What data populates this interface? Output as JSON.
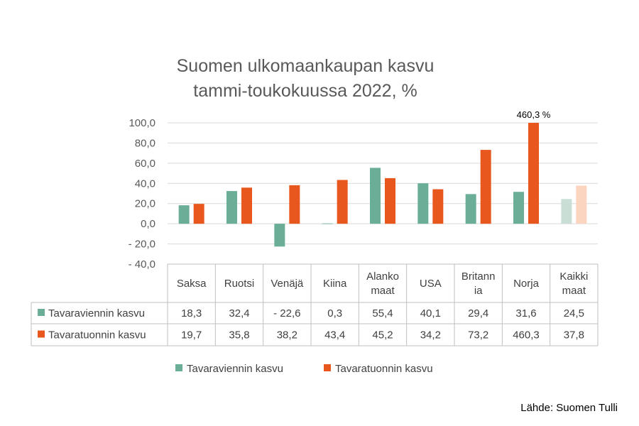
{
  "chart_data": {
    "type": "bar",
    "title": "Suomen ulkomaankaupan kasvu tammi-toukokuussa 2022, %",
    "title_lines": [
      "Suomen ulkomaankaupan kasvu",
      "tammi-toukokuussa 2022, %"
    ],
    "categories": [
      "Saksa",
      "Ruotsi",
      "Venäjä",
      "Kiina",
      "Alankomaat",
      "USA",
      "Britannia",
      "Norja",
      "Kaikki maat"
    ],
    "category_label_lines": [
      [
        "Saksa"
      ],
      [
        "Ruotsi"
      ],
      [
        "Venäjä"
      ],
      [
        "Kiina"
      ],
      [
        "Alanko",
        "maat"
      ],
      [
        "USA"
      ],
      [
        "Britann",
        "ia"
      ],
      [
        "Norja"
      ],
      [
        "Kaikki",
        "maat"
      ]
    ],
    "series": [
      {
        "name": "Tavaraviennin kasvu",
        "color": "#6aae97",
        "faded_color": "#c9dfd6",
        "values": [
          18.3,
          32.4,
          -22.6,
          0.3,
          55.4,
          40.1,
          29.4,
          31.6,
          24.5
        ],
        "value_labels": [
          "18,3",
          "32,4",
          "- 22,6",
          "0,3",
          "55,4",
          "40,1",
          "29,4",
          "31,6",
          "24,5"
        ]
      },
      {
        "name": "Tavaratuonnin kasvu",
        "color": "#e8571e",
        "faded_color": "#fcd5c0",
        "values": [
          19.7,
          35.8,
          38.2,
          43.4,
          45.2,
          34.2,
          73.2,
          460.3,
          37.8
        ],
        "value_labels": [
          "19,7",
          "35,8",
          "38,2",
          "43,4",
          "45,2",
          "34,2",
          "73,2",
          "460,3",
          "37,8"
        ]
      }
    ],
    "faded_category_index": 8,
    "ylim": [
      -40,
      100
    ],
    "yticks": [
      100,
      80,
      60,
      40,
      20,
      0,
      -20,
      -40
    ],
    "ytick_labels": [
      "100,0",
      "80,0",
      "60,0",
      "40,0",
      "20,0",
      "0,0",
      "- 20,0",
      "- 40,0"
    ],
    "annotations": [
      {
        "category": "Norja",
        "series": "Tavaratuonnin kasvu",
        "text": "460,3 %"
      }
    ],
    "grid": true,
    "data_table": true,
    "legend": "bottom"
  },
  "source": "Lähde: Suomen Tulli"
}
